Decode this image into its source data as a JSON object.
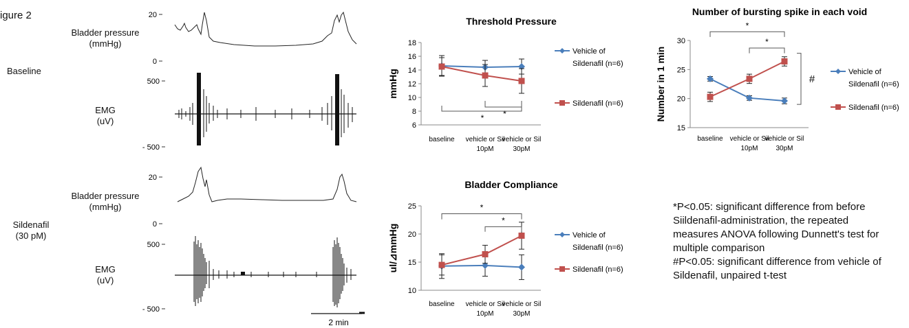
{
  "figure_label": "igure 2",
  "left_panel": {
    "condition_labels": [
      "Baseline",
      "Sildenafil",
      "(30 pM)"
    ],
    "trace_labels": {
      "bp": [
        "Bladder pressure",
        "(mmHg)"
      ],
      "emg": [
        "EMG",
        "(uV)"
      ]
    },
    "ticks": {
      "bp_top": "20",
      "bp_zero": "0",
      "emg_top": "500",
      "emg_bottom": "- 500"
    },
    "scale_bar": "2 min"
  },
  "footnote": [
    "*P<0.05: significant difference from before",
    "Siildenafil-administration, the repeated",
    "measures ANOVA following Dunnett's test for",
    "multiple comparison",
    "#P<0.05: significant difference from vehicle of",
    "Sildenafil, unpaired t-test"
  ],
  "colors": {
    "vehicle": "#4a7ebb",
    "sildenafil": "#c0504d",
    "axis": "#888888"
  },
  "chart_data": [
    {
      "type": "line",
      "title": "Threshold Pressure",
      "ylabel": "mmHg",
      "xlabel": "",
      "categories": [
        [
          "baseline"
        ],
        [
          "vehicle or Sil",
          "10pM"
        ],
        [
          "vehicle or Sil",
          "30pM"
        ]
      ],
      "ylim": [
        6,
        18
      ],
      "yticks": [
        6,
        8,
        10,
        12,
        14,
        16,
        18
      ],
      "series": [
        {
          "name": "Vehicle of Sildenafil (n=6)",
          "legend_lines": [
            "Vehicle of",
            "Sildenafil (n=6)"
          ],
          "values": [
            14.6,
            14.4,
            14.5
          ],
          "errors": [
            1.5,
            1.0,
            1.1
          ],
          "marker": "diamond"
        },
        {
          "name": "Sildenafil (n=6)",
          "legend_lines": [
            "Sildenafil (n=6)"
          ],
          "values": [
            14.5,
            13.2,
            12.4
          ],
          "errors": [
            1.3,
            1.6,
            1.8
          ],
          "marker": "square"
        }
      ],
      "annotations": [
        {
          "type": "bracket-below",
          "from": 0,
          "to": 2,
          "label": "*"
        },
        {
          "type": "bracket-below",
          "from": 1,
          "to": 2,
          "label": "*"
        }
      ],
      "grid": false,
      "legend": "right"
    },
    {
      "type": "line",
      "title": "Bladder Compliance",
      "ylabel": "ul/⊿mmHg",
      "xlabel": "",
      "categories": [
        [
          "baseline"
        ],
        [
          "vehicle or Sil",
          "10pM"
        ],
        [
          "vehicle or Sil",
          "30pM"
        ]
      ],
      "ylim": [
        10,
        25
      ],
      "yticks": [
        10,
        15,
        20,
        25
      ],
      "series": [
        {
          "name": "Vehicle of Sildenafil (n=6)",
          "legend_lines": [
            "Vehicle of",
            "Sildenafil (n=6)"
          ],
          "values": [
            14.3,
            14.4,
            14.1
          ],
          "errors": [
            2.2,
            1.9,
            2.2
          ],
          "marker": "diamond"
        },
        {
          "name": "Sildenafil (n=6)",
          "legend_lines": [
            "Sildenafil (n=6)"
          ],
          "values": [
            14.5,
            16.4,
            19.7
          ],
          "errors": [
            1.8,
            1.6,
            2.4
          ],
          "marker": "square"
        }
      ],
      "annotations": [
        {
          "type": "bracket-above",
          "from": 0,
          "to": 2,
          "label": "*"
        },
        {
          "type": "bracket-above",
          "from": 1,
          "to": 2,
          "label": "*"
        }
      ],
      "grid": false,
      "legend": "right"
    },
    {
      "type": "line",
      "title": "Number of bursting spike in each void",
      "ylabel": "Number in 1 min",
      "xlabel": "",
      "categories": [
        [
          "baseline"
        ],
        [
          "vehicle or Sil",
          "10pM"
        ],
        [
          "vehicle or Sil",
          "30pM"
        ]
      ],
      "ylim": [
        15,
        30
      ],
      "yticks": [
        15,
        20,
        25,
        30
      ],
      "series": [
        {
          "name": "Vehicle of Sildenafil (n=6)",
          "legend_lines": [
            "Vehicle of",
            "Sildenafil (n=6)"
          ],
          "values": [
            23.4,
            20.1,
            19.6
          ],
          "errors": [
            0.4,
            0.4,
            0.5
          ],
          "marker": "diamond"
        },
        {
          "name": "Sildenafil (n=6)",
          "legend_lines": [
            "Sildenafil (n=6)"
          ],
          "values": [
            20.3,
            23.4,
            26.4
          ],
          "errors": [
            0.8,
            0.8,
            0.8
          ],
          "marker": "square"
        }
      ],
      "annotations": [
        {
          "type": "bracket-above",
          "from": 0,
          "to": 2,
          "label": "*"
        },
        {
          "type": "bracket-above",
          "from": 1,
          "to": 2,
          "label": "*"
        },
        {
          "type": "bracket-right",
          "label": "#"
        }
      ],
      "grid": false,
      "legend": "right"
    }
  ]
}
